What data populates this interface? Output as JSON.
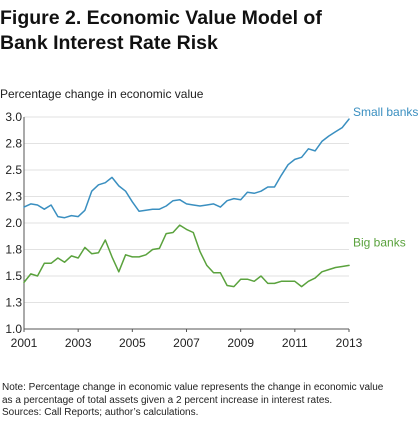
{
  "figure": {
    "title_line1": "Figure 2. Economic Value Model of",
    "title_line2": "Bank Interest Rate Risk",
    "note_line1": "Note: Percentage change in economic value represents the change in economic value",
    "note_line2": "as a percentage of total assets given a 2 percent increase in interest rates.",
    "sources": "Sources: Call Reports; author’s calculations."
  },
  "chart_data": {
    "type": "line",
    "title": "Figure 2. Economic Value Model of Bank Interest Rate Risk",
    "ylabel": "Percentage change in economic value",
    "xlabel": "",
    "xlim": [
      2001,
      2013
    ],
    "ylim": [
      1.0,
      3.0
    ],
    "x_ticks": [
      "2001",
      "2003",
      "2005",
      "2007",
      "2009",
      "2011",
      "2013"
    ],
    "y_ticks": [
      "1.0",
      "1.3",
      "1.5",
      "1.8",
      "2.0",
      "2.3",
      "2.5",
      "2.8",
      "3.0"
    ],
    "y_tick_values": [
      1.0,
      1.25,
      1.5,
      1.75,
      2.0,
      2.25,
      2.5,
      2.75,
      3.0
    ],
    "grid": "horizontal",
    "legend": "direct labels at line ends",
    "series": [
      {
        "name": "Small banks",
        "color": "#3a8fc0",
        "x": [
          2001.0,
          2001.25,
          2001.5,
          2001.75,
          2002.0,
          2002.25,
          2002.5,
          2002.75,
          2003.0,
          2003.25,
          2003.5,
          2003.75,
          2004.0,
          2004.25,
          2004.5,
          2004.75,
          2005.0,
          2005.25,
          2005.5,
          2005.75,
          2006.0,
          2006.25,
          2006.5,
          2006.75,
          2007.0,
          2007.25,
          2007.5,
          2007.75,
          2008.0,
          2008.25,
          2008.5,
          2008.75,
          2009.0,
          2009.25,
          2009.5,
          2009.75,
          2010.0,
          2010.25,
          2010.5,
          2010.75,
          2011.0,
          2011.25,
          2011.5,
          2011.75,
          2012.0,
          2012.25,
          2012.5,
          2012.75,
          2013.0
        ],
        "values": [
          2.15,
          2.18,
          2.17,
          2.13,
          2.17,
          2.06,
          2.05,
          2.07,
          2.06,
          2.12,
          2.3,
          2.36,
          2.38,
          2.43,
          2.35,
          2.3,
          2.2,
          2.11,
          2.12,
          2.13,
          2.13,
          2.16,
          2.21,
          2.22,
          2.18,
          2.17,
          2.16,
          2.17,
          2.18,
          2.15,
          2.21,
          2.23,
          2.22,
          2.29,
          2.28,
          2.3,
          2.34,
          2.34,
          2.45,
          2.55,
          2.6,
          2.62,
          2.7,
          2.68,
          2.77,
          2.82,
          2.86,
          2.9,
          2.98
        ]
      },
      {
        "name": "Big banks",
        "color": "#5aa23d",
        "x": [
          2001.0,
          2001.25,
          2001.5,
          2001.75,
          2002.0,
          2002.25,
          2002.5,
          2002.75,
          2003.0,
          2003.25,
          2003.5,
          2003.75,
          2004.0,
          2004.25,
          2004.5,
          2004.75,
          2005.0,
          2005.25,
          2005.5,
          2005.75,
          2006.0,
          2006.25,
          2006.5,
          2006.75,
          2007.0,
          2007.25,
          2007.5,
          2007.75,
          2008.0,
          2008.25,
          2008.5,
          2008.75,
          2009.0,
          2009.25,
          2009.5,
          2009.75,
          2010.0,
          2010.25,
          2010.5,
          2010.75,
          2011.0,
          2011.25,
          2011.5,
          2011.75,
          2012.0,
          2012.25,
          2012.5,
          2012.75,
          2013.0
        ],
        "values": [
          1.44,
          1.52,
          1.5,
          1.62,
          1.62,
          1.67,
          1.63,
          1.69,
          1.67,
          1.77,
          1.71,
          1.72,
          1.84,
          1.68,
          1.54,
          1.7,
          1.68,
          1.68,
          1.7,
          1.75,
          1.76,
          1.9,
          1.91,
          1.98,
          1.94,
          1.91,
          1.73,
          1.6,
          1.53,
          1.53,
          1.41,
          1.4,
          1.47,
          1.47,
          1.45,
          1.5,
          1.43,
          1.43,
          1.45,
          1.45,
          1.45,
          1.4,
          1.45,
          1.48,
          1.54,
          1.56,
          1.58,
          1.59,
          1.6
        ]
      }
    ]
  }
}
